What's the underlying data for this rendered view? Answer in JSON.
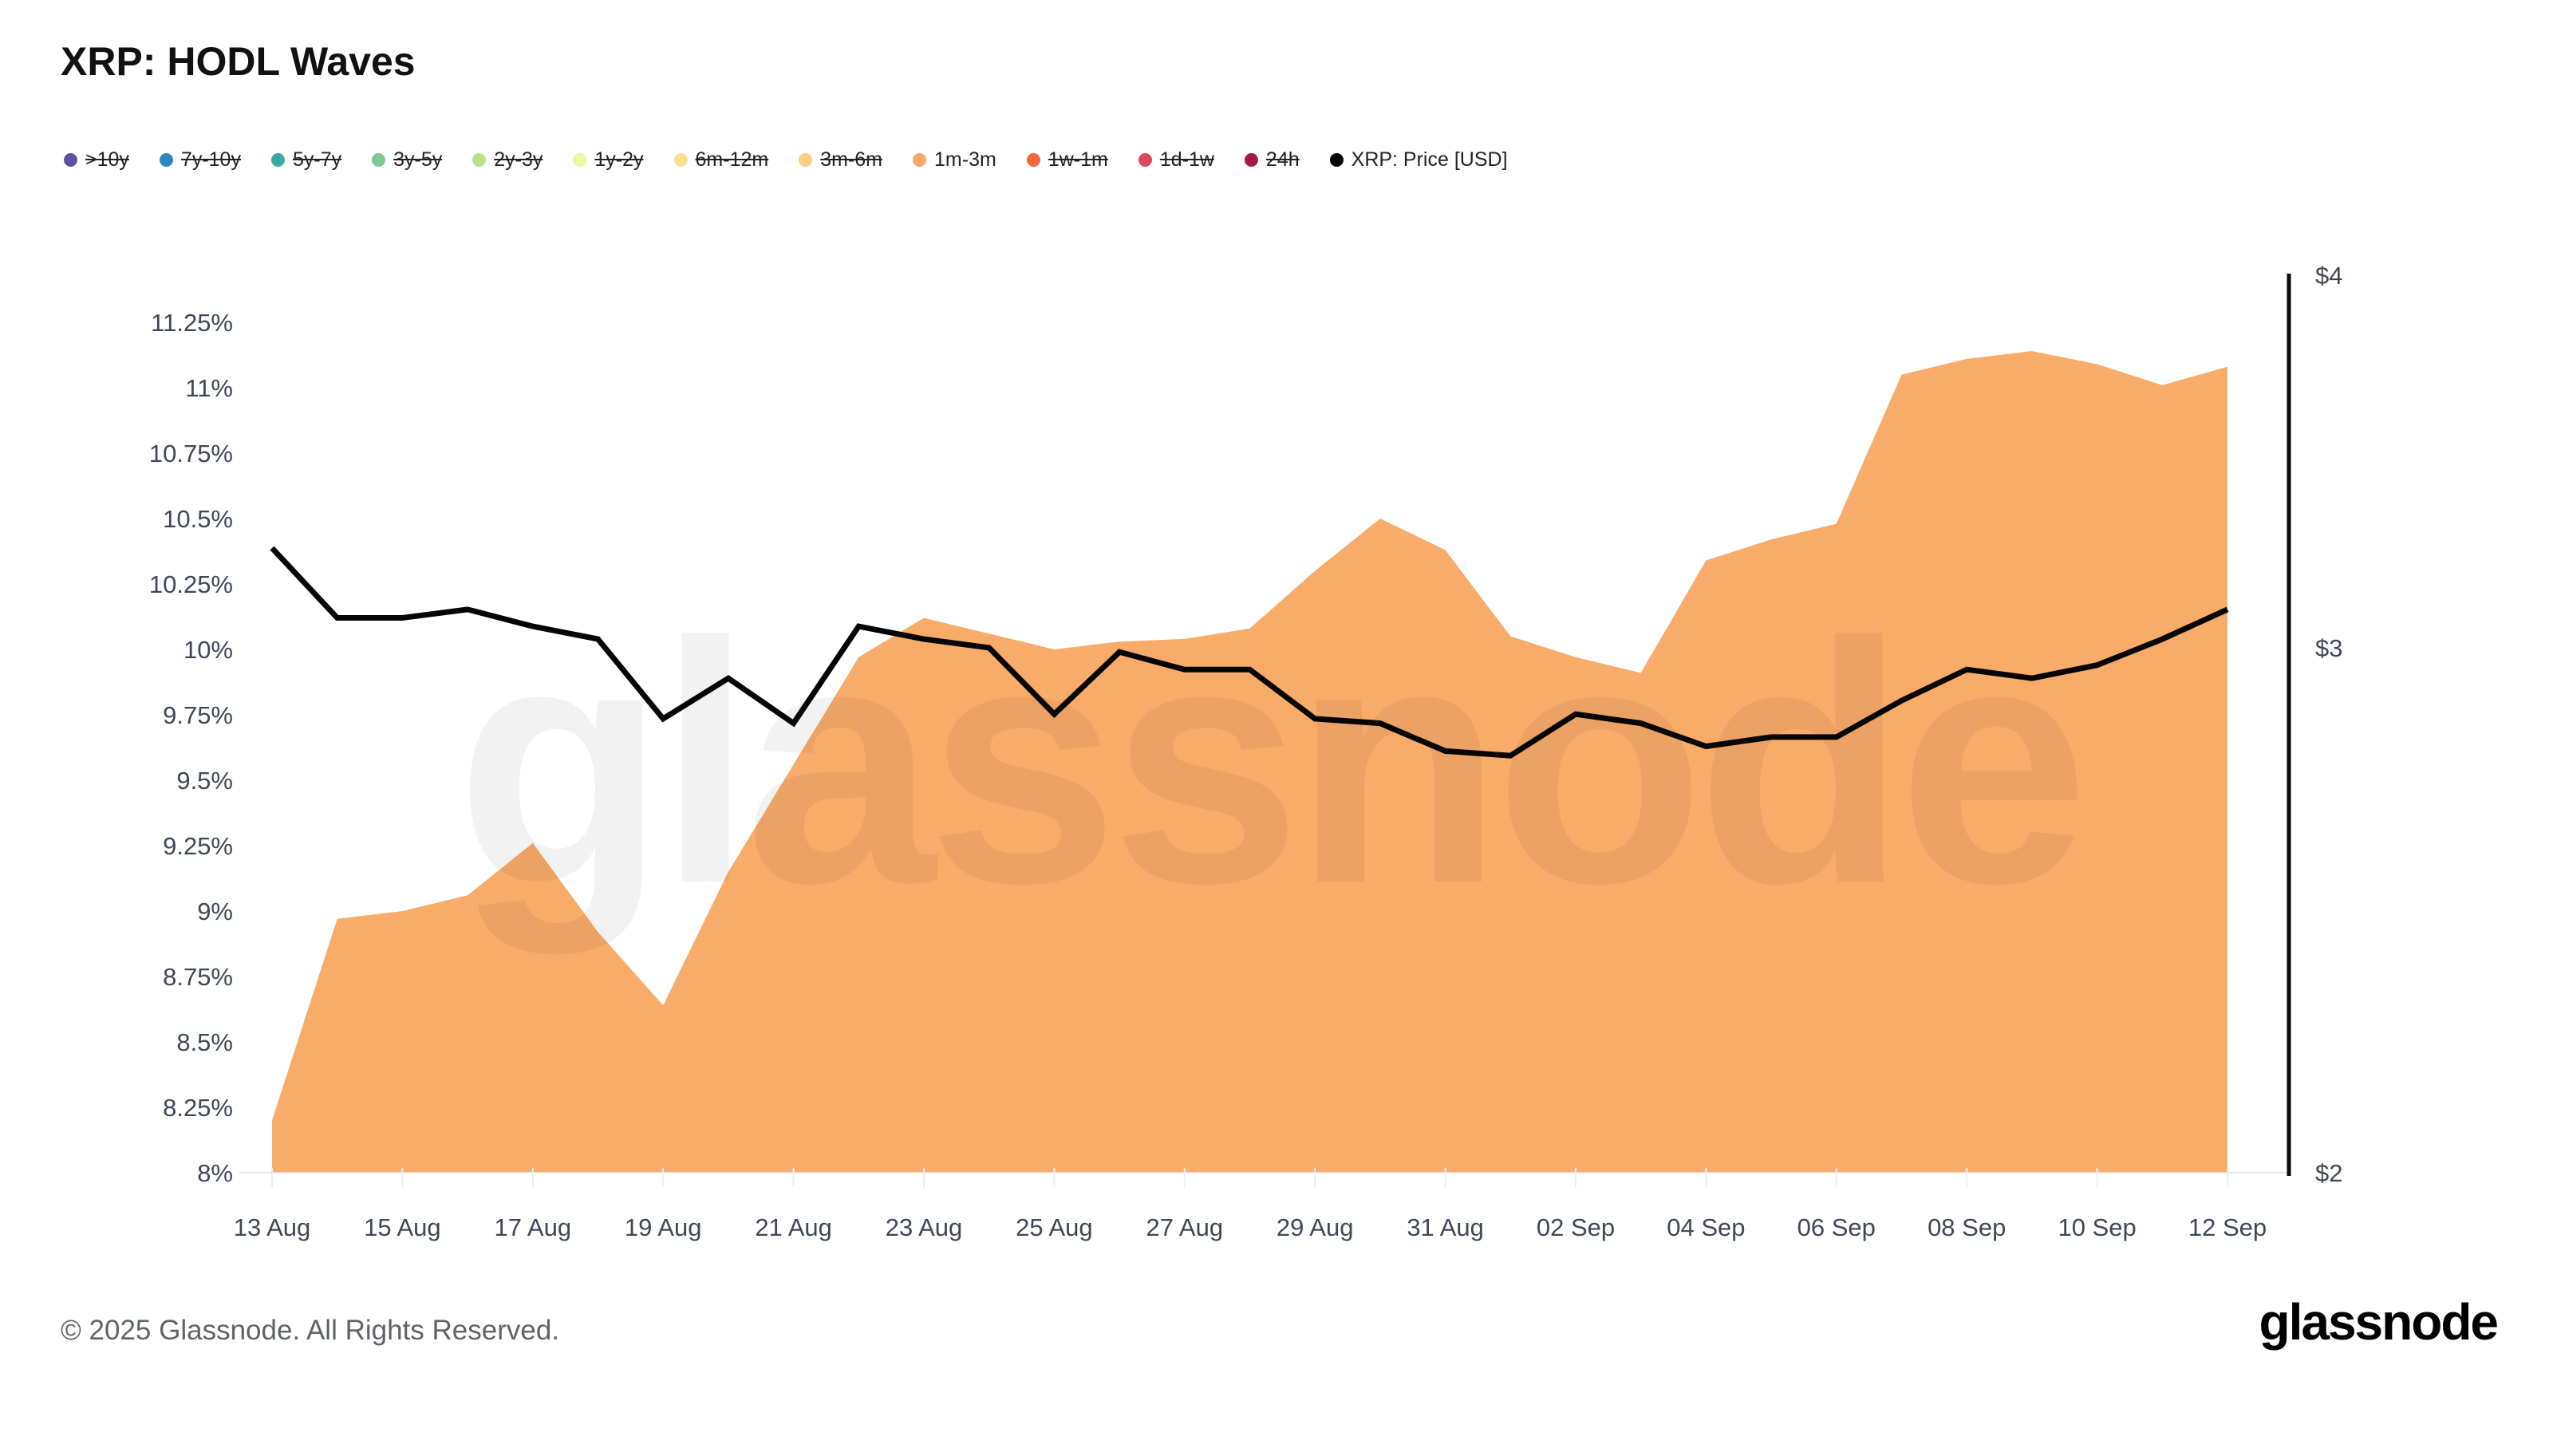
{
  "title": "XRP: HODL Waves",
  "legend": {
    "items": [
      {
        "label": ">10y",
        "color": "#5e50a2",
        "struck": true
      },
      {
        "label": "7y-10y",
        "color": "#2f86bf",
        "struck": true
      },
      {
        "label": "5y-7y",
        "color": "#3aa9a0",
        "struck": true
      },
      {
        "label": "3y-5y",
        "color": "#7fc98c",
        "struck": true
      },
      {
        "label": "2y-3y",
        "color": "#bfe083",
        "struck": true
      },
      {
        "label": "1y-2y",
        "color": "#eef4a2",
        "struck": true
      },
      {
        "label": "6m-12m",
        "color": "#fbe18c",
        "struck": true
      },
      {
        "label": "3m-6m",
        "color": "#fbcf80",
        "struck": true
      },
      {
        "label": "1m-3m",
        "color": "#f9a968",
        "struck": false
      },
      {
        "label": "1w-1m",
        "color": "#f2693f",
        "struck": true
      },
      {
        "label": "1d-1w",
        "color": "#d84b5b",
        "struck": true
      },
      {
        "label": "24h",
        "color": "#a41a4d",
        "struck": true
      },
      {
        "label": "XRP: Price [USD]",
        "color": "#000000",
        "struck": false
      }
    ]
  },
  "chart_data": {
    "type": "area",
    "title": "XRP: HODL Waves",
    "grid": false,
    "legend_position": "top-left",
    "watermark": "glassnode",
    "dates": [
      "13 Aug",
      "14 Aug",
      "15 Aug",
      "16 Aug",
      "17 Aug",
      "18 Aug",
      "19 Aug",
      "20 Aug",
      "21 Aug",
      "22 Aug",
      "23 Aug",
      "24 Aug",
      "25 Aug",
      "26 Aug",
      "27 Aug",
      "28 Aug",
      "29 Aug",
      "30 Aug",
      "31 Aug",
      "01 Sep",
      "02 Sep",
      "03 Sep",
      "04 Sep",
      "05 Sep",
      "06 Sep",
      "07 Sep",
      "08 Sep",
      "09 Sep",
      "10 Sep",
      "11 Sep",
      "12 Sep"
    ],
    "x_tick_labels": [
      "13 Aug",
      "15 Aug",
      "17 Aug",
      "19 Aug",
      "21 Aug",
      "23 Aug",
      "25 Aug",
      "27 Aug",
      "29 Aug",
      "31 Aug",
      "02 Sep",
      "04 Sep",
      "06 Sep",
      "08 Sep",
      "10 Sep",
      "12 Sep"
    ],
    "left_axis": {
      "unit": "%",
      "min": 8,
      "max": 11.25,
      "tick_step": 0.25,
      "tick_labels": [
        "8%",
        "8.25%",
        "8.5%",
        "8.75%",
        "9%",
        "9.25%",
        "9.5%",
        "9.75%",
        "10%",
        "10.25%",
        "10.5%",
        "10.75%",
        "11%",
        "11.25%"
      ]
    },
    "right_axis": {
      "unit": "USD",
      "scale": "log",
      "min": 2,
      "max": 4,
      "tick_labels": [
        "$2",
        "$3",
        "$4"
      ],
      "tick_values": [
        2,
        3,
        4
      ]
    },
    "series": [
      {
        "name": "1m-3m",
        "type": "area",
        "axis": "left",
        "unit": "%",
        "color": "#f9ab69",
        "values": [
          8.2,
          8.97,
          9.0,
          9.06,
          9.26,
          8.92,
          8.64,
          9.15,
          9.56,
          9.97,
          10.12,
          10.06,
          10.0,
          10.03,
          10.04,
          10.08,
          10.3,
          10.5,
          10.38,
          10.05,
          9.97,
          9.91,
          10.34,
          10.42,
          10.48,
          11.05,
          11.11,
          11.14,
          11.09,
          11.01,
          11.08
        ]
      },
      {
        "name": "XRP: Price [USD]",
        "type": "line",
        "axis": "right",
        "unit": "USD",
        "color": "#050505",
        "values": [
          3.24,
          3.07,
          3.07,
          3.09,
          3.05,
          3.02,
          2.84,
          2.93,
          2.83,
          3.05,
          3.02,
          3.0,
          2.85,
          2.99,
          2.95,
          2.95,
          2.84,
          2.83,
          2.77,
          2.76,
          2.85,
          2.83,
          2.78,
          2.8,
          2.8,
          2.88,
          2.95,
          2.93,
          2.96,
          3.02,
          3.09
        ]
      }
    ]
  },
  "footer": {
    "copyright": "© 2025 Glassnode. All Rights Reserved.",
    "logo": "glassnode"
  }
}
